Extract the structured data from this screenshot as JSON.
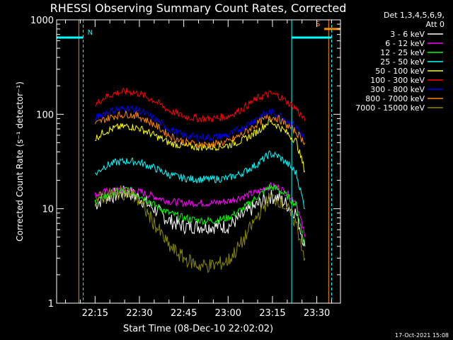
{
  "chart_data": {
    "type": "line",
    "title": "RHESSI Observing Summary Count Rates, Corrected",
    "xlabel": "Start Time (08-Dec-10 22:02:02)",
    "ylabel": "Corrected Count Rate (s⁻¹ detector⁻¹)",
    "y_scale": "log",
    "ylim": [
      1,
      1000
    ],
    "xlim_minutes": [
      2.0,
      98.0
    ],
    "x_ticks": [
      {
        "label": "22:15",
        "minute": 15
      },
      {
        "label": "22:30",
        "minute": 30
      },
      {
        "label": "22:45",
        "minute": 45
      },
      {
        "label": "23:00",
        "minute": 60
      },
      {
        "label": "23:15",
        "minute": 75
      },
      {
        "label": "23:30",
        "minute": 90
      }
    ],
    "y_ticks": [
      "1",
      "10",
      "100",
      "1000"
    ],
    "legend_header": [
      "Det 1,3,4,5,6,9,",
      "Att 0"
    ],
    "legend_position": "right",
    "timestamp": "17-Oct-2021 15:08",
    "x_minute_of_hour": [
      15,
      18,
      22,
      26,
      30,
      35,
      40,
      45,
      50,
      55,
      60,
      65,
      70,
      74,
      77,
      80,
      83,
      86
    ],
    "series": [
      {
        "name": "3 - 6 keV",
        "color": "#ffffff",
        "values": [
          11,
          13,
          14,
          15,
          13,
          10,
          7.5,
          6.5,
          6.5,
          6.5,
          6.5,
          8.5,
          11,
          13.5,
          13,
          11,
          9,
          4
        ]
      },
      {
        "name": "6 - 12 keV",
        "color": "#ff00ff",
        "values": [
          14,
          15,
          15.5,
          16,
          15,
          13.5,
          12,
          11.5,
          11.5,
          11.5,
          12,
          13.5,
          15,
          17.5,
          17,
          14.5,
          12,
          5
        ]
      },
      {
        "name": "12 - 25 keV",
        "color": "#00ff00",
        "values": [
          12,
          13.5,
          15,
          16,
          14,
          11,
          9,
          8,
          7.5,
          7.5,
          8,
          10,
          13.5,
          17,
          16,
          13.5,
          11,
          4
        ]
      },
      {
        "name": "25 - 50 keV",
        "color": "#00ffff",
        "values": [
          23,
          28,
          31,
          32,
          31,
          27,
          23,
          21,
          20.5,
          20.5,
          21,
          24,
          30,
          38,
          36,
          30,
          24,
          10
        ]
      },
      {
        "name": "50 - 100 keV",
        "color": "#ffff00",
        "values": [
          55,
          65,
          72,
          75,
          71,
          60,
          50,
          46,
          45,
          45,
          47,
          53,
          66,
          85,
          75,
          63,
          52,
          25
        ]
      },
      {
        "name": "100 - 300 keV",
        "color": "#ff0000",
        "values": [
          125,
          150,
          168,
          175,
          165,
          140,
          110,
          95,
          90,
          90,
          95,
          115,
          148,
          165,
          158,
          135,
          115,
          85
        ]
      },
      {
        "name": "300 - 800 keV",
        "color": "#0000ff",
        "values": [
          90,
          102,
          112,
          116,
          110,
          90,
          70,
          60,
          57,
          57,
          60,
          72,
          92,
          105,
          100,
          86,
          74,
          55
        ]
      },
      {
        "name": "800 - 7000 keV",
        "color": "#ff8800",
        "values": [
          78,
          88,
          97,
          100,
          95,
          78,
          60,
          51,
          48,
          48,
          51,
          62,
          80,
          95,
          90,
          76,
          65,
          50
        ]
      },
      {
        "name": "7000 - 15000 keV",
        "color": "#888800",
        "values": [
          12,
          13.5,
          14.5,
          15,
          12,
          7,
          4,
          3,
          2.5,
          2.5,
          2.8,
          4.5,
          8.5,
          13,
          12.5,
          10,
          7,
          3
        ]
      }
    ],
    "markers": [
      {
        "label": "N",
        "color": "#00ffff",
        "line_minute": 11,
        "bar_start_minute": 2,
        "level": 650
      },
      {
        "label": "S",
        "color": "#ff8800",
        "line_minute": 94.5,
        "bar_start_minute": 92.5,
        "level": 800
      }
    ],
    "vertical_lines": [
      {
        "minute": 2,
        "color": "#00ffff",
        "style": "solid"
      },
      {
        "minute": 11,
        "color": "#00ffff",
        "style": "dashed"
      },
      {
        "minute": 81.5,
        "color": "#00ffff",
        "style": "solid"
      },
      {
        "minute": 95,
        "color": "#00ffff",
        "style": "dashed"
      },
      {
        "minute": 94,
        "color": "#ff8800",
        "style": "solid"
      },
      {
        "minute": 9.5,
        "color": "#ff8800",
        "style": "solid"
      }
    ],
    "grid": false
  }
}
